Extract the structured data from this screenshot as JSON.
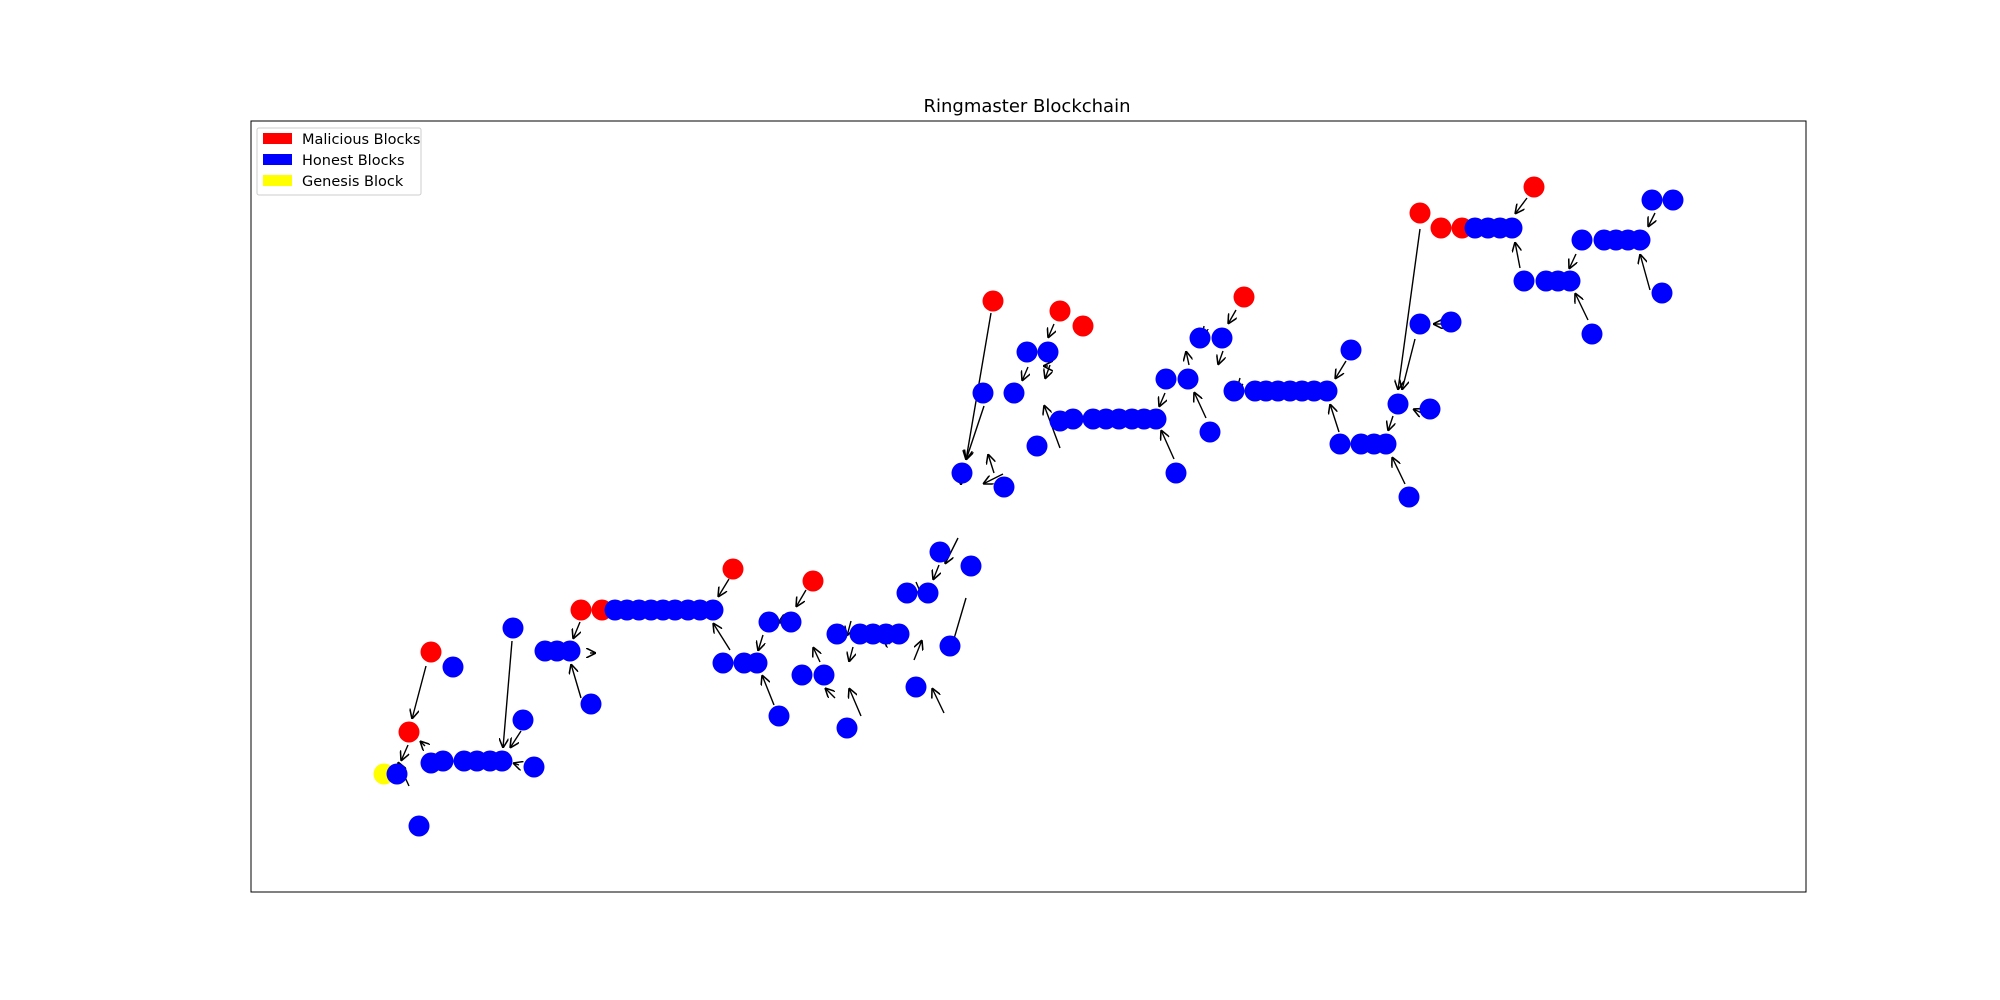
{
  "title": "Ringmaster Blockchain",
  "legend": [
    {
      "label": "Malicious Blocks",
      "color": "#ff0000"
    },
    {
      "label": "Honest Blocks",
      "color": "#0000ff"
    },
    {
      "label": "Genesis Block",
      "color": "#ffff00"
    }
  ],
  "colors": {
    "malicious": "#ff0000",
    "honest": "#0000ff",
    "genesis": "#ffff00",
    "edge": "#000000"
  }
}
